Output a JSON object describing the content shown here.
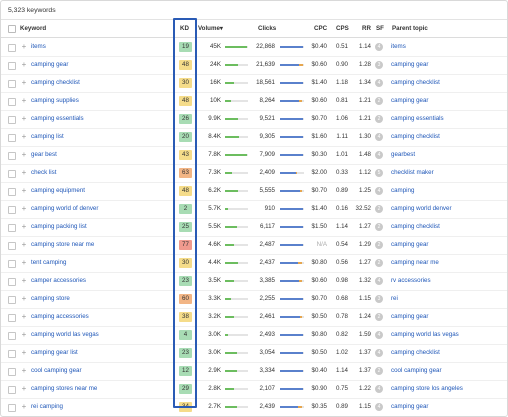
{
  "summary": {
    "keyword_count": "5,323 keywords"
  },
  "columns": {
    "keyword": "Keyword",
    "kd": "KD",
    "volume": "Volume",
    "volume_sort": "▾",
    "clicks": "Clicks",
    "cpc": "CPC",
    "cps": "CPS",
    "rr": "RR",
    "sf": "SF",
    "parent": "Parent topic"
  },
  "colors": {
    "kd_green": "#a8dcb4",
    "kd_yellow": "#f5dc8a",
    "kd_orange": "#f2b585",
    "kd_red": "#f09a8e",
    "highlight_border": "#2a5bb5",
    "link": "#1f57b8"
  },
  "rows": [
    {
      "keyword": "items",
      "kd": "19",
      "kd_color": "#a8dcb4",
      "volume": "45K",
      "vol_pct": 0.95,
      "clicks": "22,868",
      "click_pct": 0.95,
      "paid_pct": 0.0,
      "cpc": "$0.40",
      "cps": "0.51",
      "rr": "1.14",
      "sf": "4",
      "parent": "items"
    },
    {
      "keyword": "camping gear",
      "kd": "48",
      "kd_color": "#f5dc8a",
      "volume": "24K",
      "vol_pct": 0.55,
      "clicks": "21,639",
      "click_pct": 0.78,
      "paid_pct": 0.18,
      "cpc": "$0.60",
      "cps": "0.90",
      "rr": "1.28",
      "sf": "3",
      "parent": "camping gear"
    },
    {
      "keyword": "camping checklist",
      "kd": "30",
      "kd_color": "#f5dc8a",
      "volume": "16K",
      "vol_pct": 0.4,
      "clicks": "18,561",
      "click_pct": 0.96,
      "paid_pct": 0.0,
      "cpc": "$1.40",
      "cps": "1.18",
      "rr": "1.34",
      "sf": "4",
      "parent": "camping checklist"
    },
    {
      "keyword": "camping supplies",
      "kd": "48",
      "kd_color": "#f5dc8a",
      "volume": "10K",
      "vol_pct": 0.28,
      "clicks": "8,264",
      "click_pct": 0.8,
      "paid_pct": 0.12,
      "cpc": "$0.60",
      "cps": "0.81",
      "rr": "1.21",
      "sf": "2",
      "parent": "camping gear"
    },
    {
      "keyword": "camping essentials",
      "kd": "26",
      "kd_color": "#a8dcb4",
      "volume": "9.9K",
      "vol_pct": 0.55,
      "clicks": "9,521",
      "click_pct": 0.96,
      "paid_pct": 0.0,
      "cpc": "$0.70",
      "cps": "1.06",
      "rr": "1.21",
      "sf": "2",
      "parent": "camping essentials"
    },
    {
      "keyword": "camping list",
      "kd": "20",
      "kd_color": "#a8dcb4",
      "volume": "8.4K",
      "vol_pct": 0.6,
      "clicks": "9,305",
      "click_pct": 0.96,
      "paid_pct": 0.0,
      "cpc": "$1.60",
      "cps": "1.11",
      "rr": "1.30",
      "sf": "4",
      "parent": "camping checklist"
    },
    {
      "keyword": "gear best",
      "kd": "43",
      "kd_color": "#f5dc8a",
      "volume": "7.8K",
      "vol_pct": 0.95,
      "clicks": "7,909",
      "click_pct": 0.97,
      "paid_pct": 0.0,
      "cpc": "$0.30",
      "cps": "1.01",
      "rr": "1.48",
      "sf": "4",
      "parent": "gearbest"
    },
    {
      "keyword": "check list",
      "kd": "63",
      "kd_color": "#f2b585",
      "volume": "7.3K",
      "vol_pct": 0.3,
      "clicks": "2,409",
      "click_pct": 0.68,
      "paid_pct": 0.05,
      "cpc": "$2.00",
      "cps": "0.33",
      "rr": "1.12",
      "sf": "5",
      "parent": "checklist maker"
    },
    {
      "keyword": "camping equipment",
      "kd": "48",
      "kd_color": "#f5dc8a",
      "volume": "6.2K",
      "vol_pct": 0.55,
      "clicks": "5,555",
      "click_pct": 0.85,
      "paid_pct": 0.1,
      "cpc": "$0.70",
      "cps": "0.89",
      "rr": "1.25",
      "sf": "4",
      "parent": "camping"
    },
    {
      "keyword": "camping world of denver",
      "kd": "2",
      "kd_color": "#a8dcb4",
      "volume": "5.7K",
      "vol_pct": 0.12,
      "clicks": "910",
      "click_pct": 0.97,
      "paid_pct": 0.0,
      "cpc": "$1.40",
      "cps": "0.16",
      "rr": "32.52",
      "sf": "2",
      "parent": "camping world denver"
    },
    {
      "keyword": "camping packing list",
      "kd": "25",
      "kd_color": "#a8dcb4",
      "volume": "5.5K",
      "vol_pct": 0.5,
      "clicks": "6,117",
      "click_pct": 0.96,
      "paid_pct": 0.0,
      "cpc": "$1.50",
      "cps": "1.14",
      "rr": "1.27",
      "sf": "2",
      "parent": "camping checklist"
    },
    {
      "keyword": "camping store near me",
      "kd": "77",
      "kd_color": "#f09a8e",
      "volume": "4.6K",
      "vol_pct": 0.4,
      "clicks": "2,487",
      "click_pct": 0.96,
      "paid_pct": 0.0,
      "cpc": "N/A",
      "cps": "0.54",
      "rr": "1.29",
      "sf": "2",
      "parent": "camping gear"
    },
    {
      "keyword": "tent camping",
      "kd": "30",
      "kd_color": "#f5dc8a",
      "volume": "4.4K",
      "vol_pct": 0.55,
      "clicks": "2,437",
      "click_pct": 0.75,
      "paid_pct": 0.15,
      "cpc": "$0.80",
      "cps": "0.56",
      "rr": "1.27",
      "sf": "2",
      "parent": "camping near me"
    },
    {
      "keyword": "camper accessories",
      "kd": "23",
      "kd_color": "#a8dcb4",
      "volume": "3.5K",
      "vol_pct": 0.4,
      "clicks": "3,385",
      "click_pct": 0.8,
      "paid_pct": 0.12,
      "cpc": "$0.60",
      "cps": "0.98",
      "rr": "1.32",
      "sf": "4",
      "parent": "rv accessories"
    },
    {
      "keyword": "camping store",
      "kd": "60",
      "kd_color": "#f2b585",
      "volume": "3.3K",
      "vol_pct": 0.25,
      "clicks": "2,255",
      "click_pct": 0.96,
      "paid_pct": 0.0,
      "cpc": "$0.70",
      "cps": "0.68",
      "rr": "1.15",
      "sf": "3",
      "parent": "rei"
    },
    {
      "keyword": "camping accessories",
      "kd": "38",
      "kd_color": "#f5dc8a",
      "volume": "3.2K",
      "volume_pct": 0.4,
      "vol_pct": 0.4,
      "clicks": "2,461",
      "click_pct": 0.85,
      "paid_pct": 0.1,
      "cpc": "$0.50",
      "cps": "0.78",
      "rr": "1.24",
      "sf": "2",
      "parent": "camping gear"
    },
    {
      "keyword": "camping world las vegas",
      "kd": "4",
      "kd_color": "#a8dcb4",
      "volume": "3.0K",
      "vol_pct": 0.12,
      "clicks": "2,493",
      "click_pct": 0.97,
      "paid_pct": 0.0,
      "cpc": "$0.80",
      "cps": "0.82",
      "rr": "1.59",
      "sf": "4",
      "parent": "camping world las vegas"
    },
    {
      "keyword": "camping gear list",
      "kd": "23",
      "kd_color": "#a8dcb4",
      "volume": "3.0K",
      "vol_pct": 0.5,
      "clicks": "3,054",
      "click_pct": 0.96,
      "paid_pct": 0.0,
      "cpc": "$0.50",
      "cps": "1.02",
      "rr": "1.37",
      "sf": "4",
      "parent": "camping checklist"
    },
    {
      "keyword": "cool camping gear",
      "kd": "12",
      "kd_color": "#a8dcb4",
      "volume": "2.9K",
      "vol_pct": 0.5,
      "clicks": "3,334",
      "click_pct": 0.96,
      "paid_pct": 0.0,
      "cpc": "$0.40",
      "cps": "1.14",
      "rr": "1.37",
      "sf": "2",
      "parent": "cool camping gear"
    },
    {
      "keyword": "camping stores near me",
      "kd": "29",
      "kd_color": "#a8dcb4",
      "volume": "2.8K",
      "vol_pct": 0.4,
      "clicks": "2,107",
      "click_pct": 0.96,
      "paid_pct": 0.0,
      "cpc": "$0.90",
      "cps": "0.75",
      "rr": "1.22",
      "sf": "4",
      "parent": "camping store los angeles"
    },
    {
      "keyword": "rei camping",
      "kd": "34",
      "kd_color": "#f5dc8a",
      "volume": "2.7K",
      "vol_pct": 0.5,
      "clicks": "2,439",
      "click_pct": 0.75,
      "paid_pct": 0.15,
      "cpc": "$0.35",
      "cps": "0.89",
      "rr": "1.15",
      "sf": "4",
      "parent": "camping gear"
    }
  ]
}
